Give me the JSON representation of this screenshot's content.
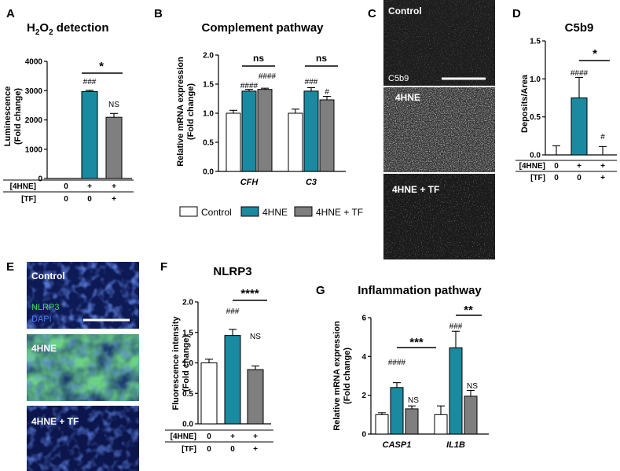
{
  "colors": {
    "control": "#ffffff",
    "hne": "#1a8aa0",
    "tf": "#7f7f7f",
    "axis": "#000000",
    "micro_blue": "#10206a",
    "micro_green": "#2aa84a"
  },
  "panels": {
    "A": {
      "letter": "A",
      "title_main": "H",
      "title_sub": "2",
      "title_mid": "O",
      "title_sub2": "2",
      "title_tail": " detection",
      "ylabel1": "Luminescence",
      "ylabel2": "(Fold change)",
      "row1": "[4HNE]",
      "row2": "[TF]",
      "row1_vals": [
        "0",
        "+",
        "+"
      ],
      "row2_vals": [
        "0",
        "0",
        "+"
      ],
      "sig": "*",
      "hash": "###",
      "ns": "NS"
    },
    "B": {
      "letter": "B",
      "title": "Complement pathway",
      "ylabel1": "Relative mRNA expression",
      "ylabel2": "(Fold change)",
      "ns1": "ns",
      "ns2": "ns",
      "hash_cfh1": "####",
      "hash_cfh2": "####",
      "hash_c3_1": "###",
      "hash_c3_2": "#",
      "legend": [
        "Control",
        "4HNE",
        "4HNE + TF"
      ]
    },
    "C": {
      "letter": "C",
      "label_control": "Control",
      "stain": "C5b9",
      "label_hne": "4HNE",
      "label_tf": "4HNE + TF"
    },
    "D": {
      "letter": "D",
      "title": "C5b9",
      "ylabel": "Deposits/Area",
      "row1": "[4HNE]",
      "row2": "[TF]",
      "row1_vals": [
        "0",
        "+",
        "+"
      ],
      "row2_vals": [
        "0",
        "0",
        "+"
      ],
      "sig": "*",
      "hash": "####",
      "hash2": "#"
    },
    "E": {
      "letter": "E",
      "label_control": "Control",
      "stain1": "NLRP3",
      "stain2": "DAPI",
      "label_hne": "4HNE",
      "label_tf": "4HNE + TF"
    },
    "F": {
      "letter": "F",
      "title": "NLRP3",
      "ylabel1": "Fluorescence intensity",
      "ylabel2": "(Fold change)",
      "row1": "[4HNE]",
      "row2": "[TF]",
      "row1_vals": [
        "0",
        "+",
        "+"
      ],
      "row2_vals": [
        "0",
        "0",
        "+"
      ],
      "sig": "****",
      "hash": "###",
      "ns": "NS"
    },
    "G": {
      "letter": "G",
      "title": "Inflammation pathway",
      "ylabel1": "Relative mRNA expression",
      "ylabel2": "(Fold change)",
      "sig1": "***",
      "sig2": "**",
      "hash1": "####",
      "hash2": "###",
      "ns1": "NS",
      "ns2": "NS"
    }
  },
  "chart_data": [
    {
      "id": "A",
      "type": "bar",
      "title": "H2O2 detection",
      "ylabel": "Luminescence (Fold change)",
      "ylim": [
        0,
        4000
      ],
      "yticks": [
        0,
        1000,
        2000,
        3000,
        4000
      ],
      "categories": [
        "Control",
        "4HNE",
        "4HNE + TF"
      ],
      "values": [
        0,
        2970,
        2090
      ],
      "errors": [
        0,
        40,
        130
      ]
    },
    {
      "id": "B",
      "type": "bar",
      "title": "Complement pathway",
      "ylabel": "Relative mRNA expression (Fold change)",
      "ylim": [
        0,
        2.0
      ],
      "yticks": [
        0.0,
        0.5,
        1.0,
        1.5,
        2.0
      ],
      "categories": [
        "CFH",
        "C3"
      ],
      "series": [
        {
          "name": "Control",
          "values": [
            1.0,
            1.0
          ],
          "errors": [
            0.05,
            0.07
          ]
        },
        {
          "name": "4HNE",
          "values": [
            1.38,
            1.38
          ],
          "errors": [
            0.03,
            0.06
          ]
        },
        {
          "name": "4HNE + TF",
          "values": [
            1.41,
            1.23
          ],
          "errors": [
            0.02,
            0.06
          ]
        }
      ]
    },
    {
      "id": "D",
      "type": "bar",
      "title": "C5b9",
      "ylabel": "Deposits/Area",
      "ylim": [
        0,
        1.5
      ],
      "yticks": [
        0.0,
        0.5,
        1.0,
        1.5
      ],
      "categories": [
        "Control",
        "4HNE",
        "4HNE + TF"
      ],
      "values": [
        0.0,
        0.75,
        0.0
      ],
      "errors": [
        0.12,
        0.27,
        0.11
      ]
    },
    {
      "id": "F",
      "type": "bar",
      "title": "NLRP3",
      "ylabel": "Fluorescence intensity (Fold change)",
      "ylim": [
        0,
        2.0
      ],
      "yticks": [
        0.0,
        0.5,
        1.0,
        1.5,
        2.0
      ],
      "categories": [
        "Control",
        "4HNE",
        "4HNE + TF"
      ],
      "values": [
        1.0,
        1.45,
        0.89
      ],
      "errors": [
        0.06,
        0.1,
        0.06
      ]
    },
    {
      "id": "G",
      "type": "bar",
      "title": "Inflammation pathway",
      "ylabel": "Relative mRNA expression (Fold change)",
      "ylim": [
        0,
        6
      ],
      "yticks": [
        0,
        2,
        4,
        6
      ],
      "categories": [
        "CASP1",
        "IL1B"
      ],
      "series": [
        {
          "name": "Control",
          "values": [
            1.0,
            1.0
          ],
          "errors": [
            0.1,
            0.45
          ]
        },
        {
          "name": "4HNE",
          "values": [
            2.4,
            4.45
          ],
          "errors": [
            0.25,
            0.85
          ]
        },
        {
          "name": "4HNE + TF",
          "values": [
            1.3,
            1.95
          ],
          "errors": [
            0.15,
            0.3
          ]
        }
      ]
    }
  ]
}
